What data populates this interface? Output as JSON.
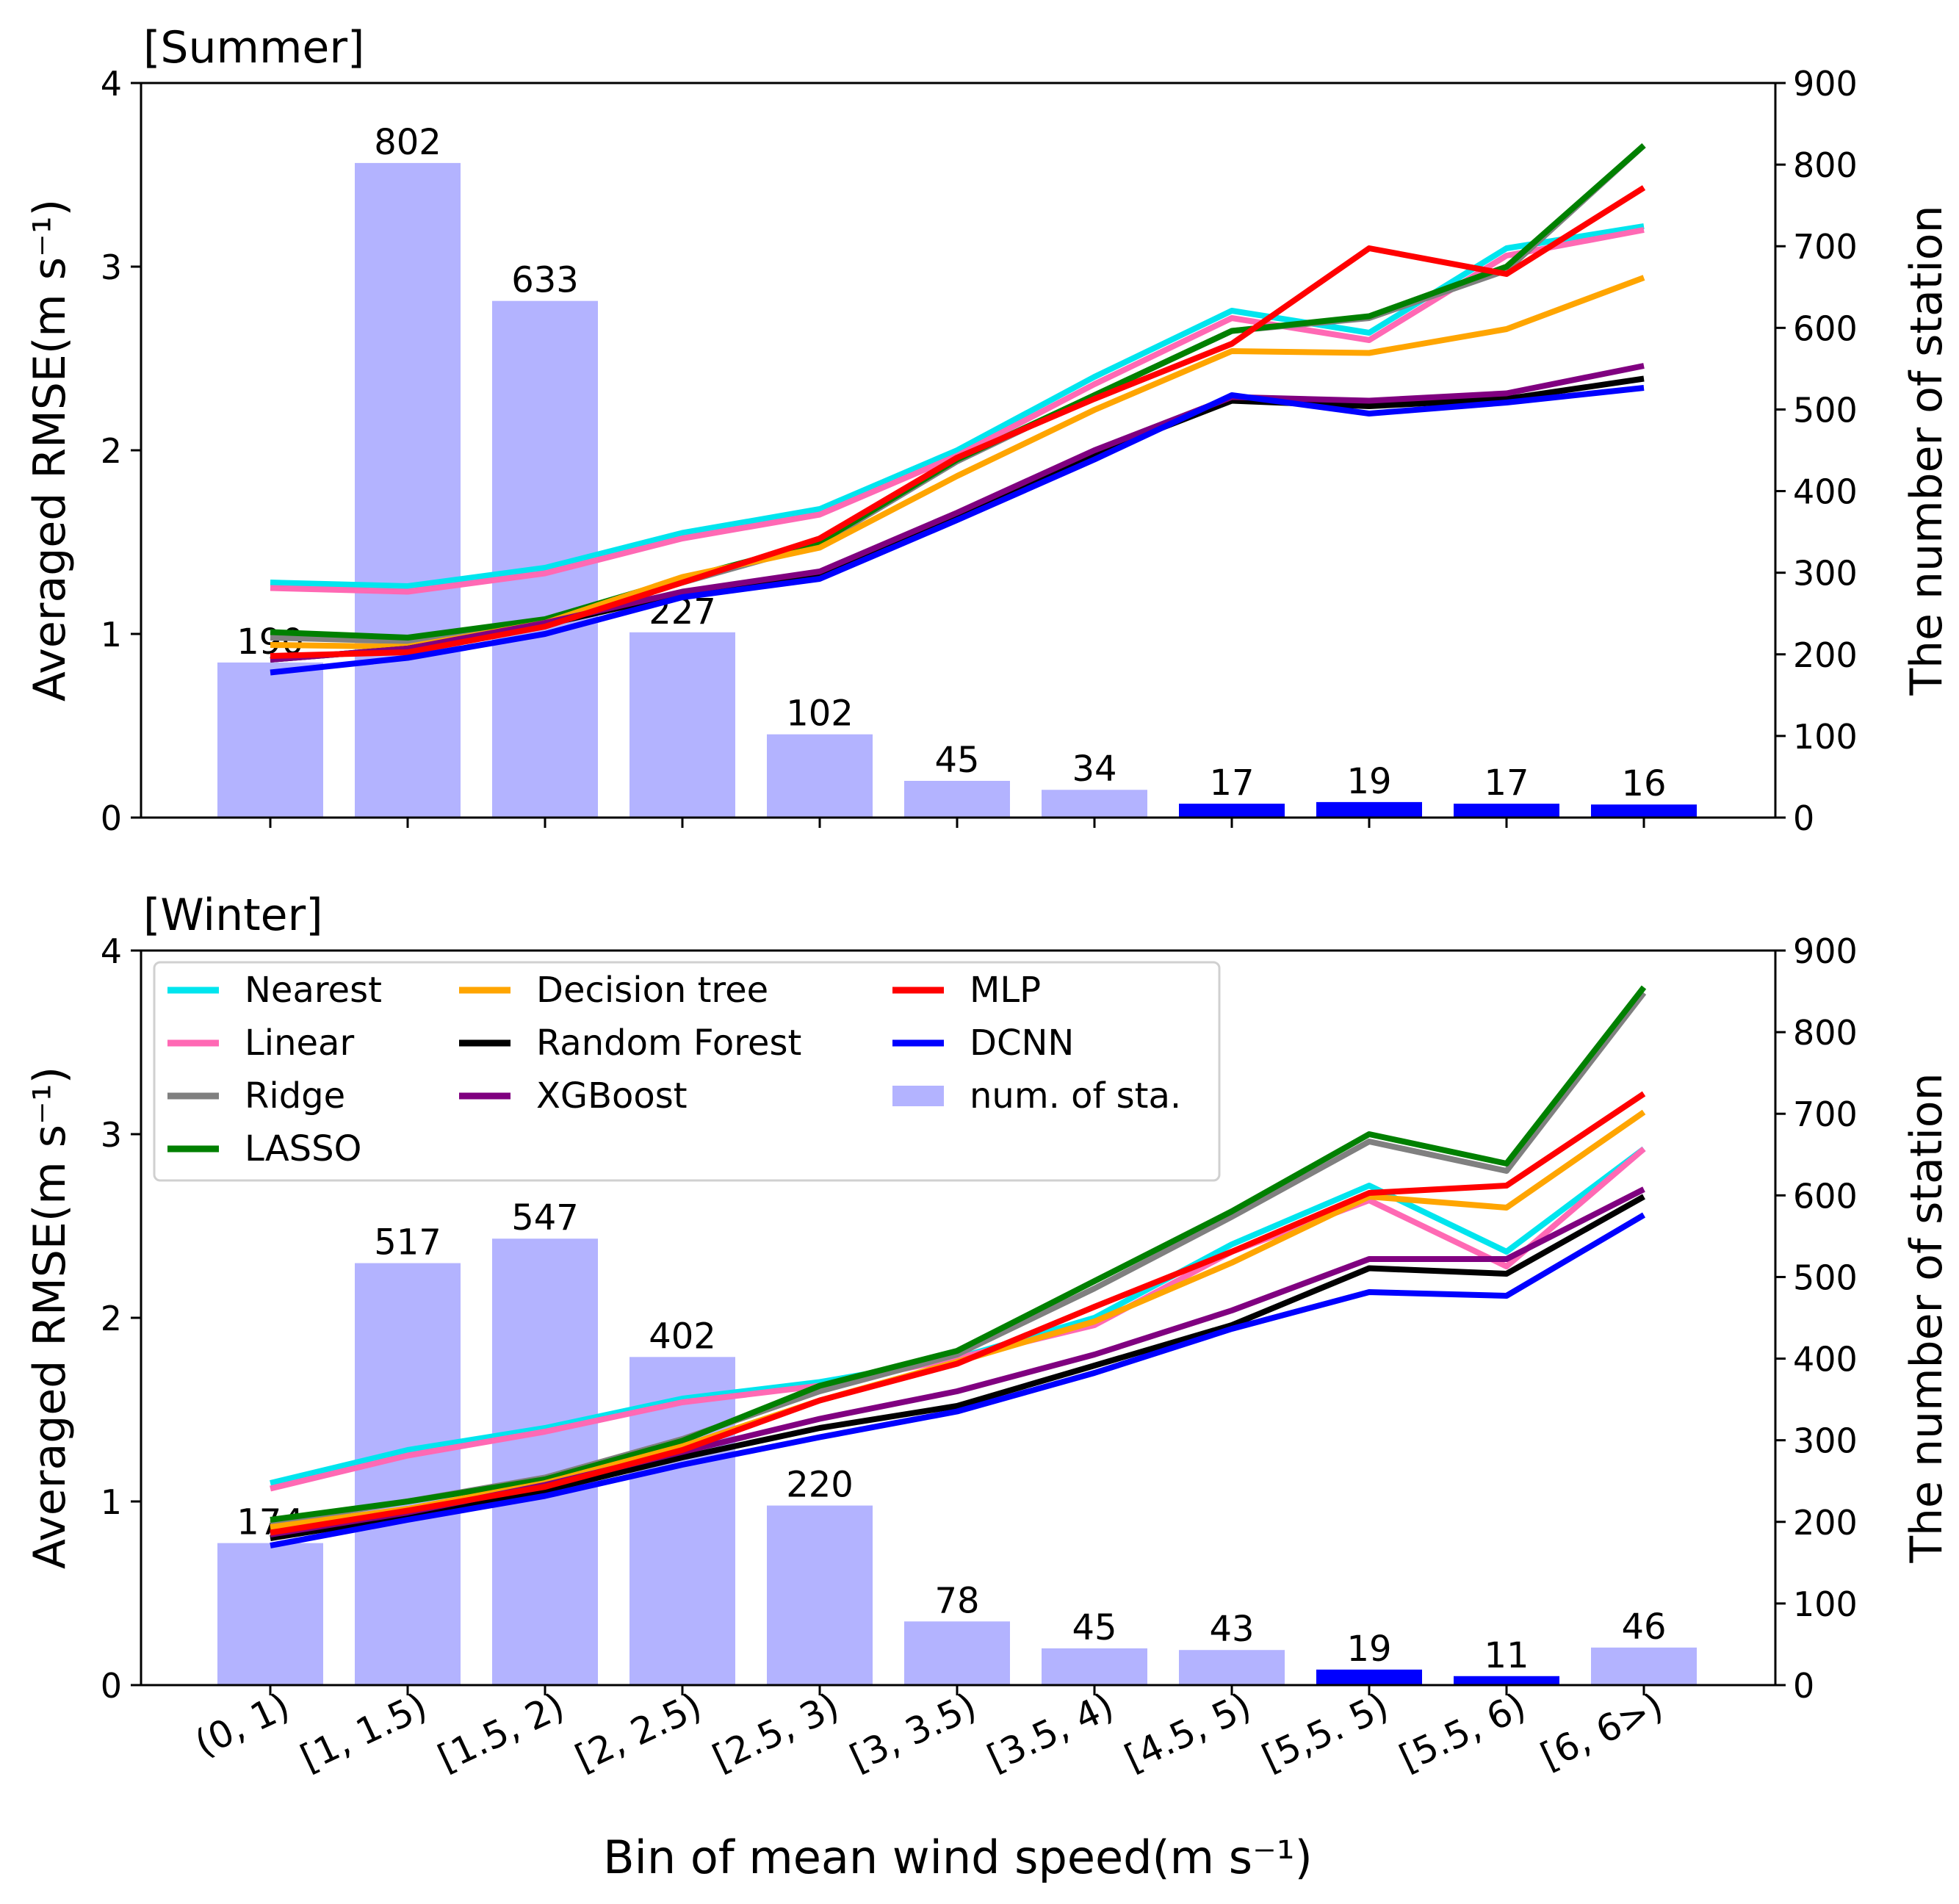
{
  "chart_data": [
    {
      "type": "line+bar",
      "title": "[Summer]",
      "xlabel": "Bin of mean wind speed(m s⁻¹)",
      "ylabel": "Averaged RMSE(m s⁻¹)",
      "y2label": "The number of station",
      "ylim": [
        0,
        4
      ],
      "y2lim": [
        0,
        900
      ],
      "yticks": [
        "0",
        "1",
        "2",
        "3",
        "4"
      ],
      "y2ticks": [
        "0",
        "100",
        "200",
        "300",
        "400",
        "500",
        "600",
        "700",
        "800",
        "900"
      ],
      "categories": [
        "(0, 1)",
        "[1, 1.5)",
        "[1.5, 2)",
        "[2, 2.5)",
        "[2.5, 3)",
        "[3, 3.5)",
        "[3.5, 4)",
        "[4.5, 5)",
        "[5,5. 5)",
        "[5.5, 6)",
        "[6, 6>)"
      ],
      "bars": {
        "name": "num. of sta.",
        "values": [
          190,
          802,
          633,
          227,
          102,
          45,
          34,
          17,
          19,
          17,
          16
        ],
        "labels": [
          "190",
          "802",
          "633",
          "227",
          "102",
          "45",
          "34",
          "17",
          "19",
          "17",
          "16"
        ]
      },
      "series": [
        {
          "name": "Nearest",
          "color": "#00e5ee",
          "values": [
            1.28,
            1.26,
            1.36,
            1.55,
            1.68,
            2.0,
            2.4,
            2.76,
            2.64,
            3.1,
            3.22
          ]
        },
        {
          "name": "Linear",
          "color": "#ff69b4",
          "values": [
            1.25,
            1.23,
            1.33,
            1.52,
            1.65,
            1.97,
            2.36,
            2.72,
            2.6,
            3.06,
            3.2
          ]
        },
        {
          "name": "Ridge",
          "color": "#808080",
          "values": [
            0.98,
            0.96,
            1.06,
            1.28,
            1.49,
            1.94,
            2.3,
            2.65,
            2.72,
            2.98,
            3.66
          ]
        },
        {
          "name": "LASSO",
          "color": "#008000",
          "values": [
            1.01,
            0.98,
            1.08,
            1.3,
            1.5,
            1.95,
            2.3,
            2.65,
            2.73,
            3.0,
            3.66
          ]
        },
        {
          "name": "Decision tree",
          "color": "#ffa500",
          "values": [
            0.94,
            0.93,
            1.06,
            1.31,
            1.47,
            1.86,
            2.22,
            2.54,
            2.53,
            2.66,
            2.94
          ]
        },
        {
          "name": "Random Forest",
          "color": "#000000",
          "values": [
            0.86,
            0.92,
            1.05,
            1.22,
            1.33,
            1.65,
            1.98,
            2.27,
            2.24,
            2.28,
            2.39
          ]
        },
        {
          "name": "XGBoost",
          "color": "#800080",
          "values": [
            0.86,
            0.92,
            1.06,
            1.23,
            1.34,
            1.66,
            2.0,
            2.29,
            2.27,
            2.31,
            2.46
          ]
        },
        {
          "name": "MLP",
          "color": "#ff0000",
          "values": [
            0.88,
            0.9,
            1.04,
            1.28,
            1.52,
            1.96,
            2.28,
            2.58,
            3.1,
            2.96,
            3.43
          ]
        },
        {
          "name": "DCNN",
          "color": "#0000ff",
          "values": [
            0.79,
            0.87,
            1.0,
            1.2,
            1.3,
            1.62,
            1.95,
            2.3,
            2.2,
            2.26,
            2.34
          ]
        }
      ]
    },
    {
      "type": "line+bar",
      "title": "[Winter]",
      "xlabel": "Bin of mean wind speed(m s⁻¹)",
      "ylabel": "Averaged RMSE(m s⁻¹)",
      "y2label": "The number of station",
      "ylim": [
        0,
        4
      ],
      "y2lim": [
        0,
        900
      ],
      "yticks": [
        "0",
        "1",
        "2",
        "3",
        "4"
      ],
      "y2ticks": [
        "0",
        "100",
        "200",
        "300",
        "400",
        "500",
        "600",
        "700",
        "800",
        "900"
      ],
      "categories": [
        "(0, 1)",
        "[1, 1.5)",
        "[1.5, 2)",
        "[2, 2.5)",
        "[2.5, 3)",
        "[3, 3.5)",
        "[3.5, 4)",
        "[4.5, 5)",
        "[5,5. 5)",
        "[5.5, 6)",
        "[6, 6>)"
      ],
      "bars": {
        "name": "num. of sta.",
        "values": [
          174,
          517,
          547,
          402,
          220,
          78,
          45,
          43,
          19,
          11,
          46
        ],
        "labels": [
          "174",
          "517",
          "547",
          "402",
          "220",
          "78",
          "45",
          "43",
          "19",
          "11",
          "46"
        ]
      },
      "series": [
        {
          "name": "Nearest",
          "color": "#00e5ee",
          "values": [
            1.1,
            1.28,
            1.4,
            1.56,
            1.65,
            1.78,
            2.0,
            2.4,
            2.72,
            2.36,
            2.92
          ]
        },
        {
          "name": "Linear",
          "color": "#ff69b4",
          "values": [
            1.07,
            1.25,
            1.38,
            1.54,
            1.63,
            1.78,
            1.96,
            2.36,
            2.64,
            2.28,
            2.92
          ]
        },
        {
          "name": "Ridge",
          "color": "#808080",
          "values": [
            0.88,
            1.0,
            1.13,
            1.34,
            1.6,
            1.8,
            2.16,
            2.55,
            2.96,
            2.8,
            3.77
          ]
        },
        {
          "name": "LASSO",
          "color": "#008000",
          "values": [
            0.9,
            1.0,
            1.12,
            1.33,
            1.63,
            1.82,
            2.2,
            2.58,
            3.0,
            2.84,
            3.8
          ]
        },
        {
          "name": "Decision tree",
          "color": "#ffa500",
          "values": [
            0.86,
            0.96,
            1.1,
            1.3,
            1.55,
            1.76,
            1.98,
            2.3,
            2.66,
            2.6,
            3.12
          ]
        },
        {
          "name": "Random Forest",
          "color": "#000000",
          "values": [
            0.8,
            0.92,
            1.06,
            1.24,
            1.4,
            1.52,
            1.74,
            1.96,
            2.27,
            2.24,
            2.66
          ]
        },
        {
          "name": "XGBoost",
          "color": "#800080",
          "values": [
            0.82,
            0.94,
            1.09,
            1.27,
            1.45,
            1.6,
            1.8,
            2.04,
            2.32,
            2.32,
            2.7
          ]
        },
        {
          "name": "MLP",
          "color": "#ff0000",
          "values": [
            0.83,
            0.95,
            1.08,
            1.28,
            1.55,
            1.75,
            2.06,
            2.36,
            2.68,
            2.72,
            3.22
          ]
        },
        {
          "name": "DCNN",
          "color": "#0000ff",
          "values": [
            0.76,
            0.9,
            1.03,
            1.2,
            1.35,
            1.49,
            1.7,
            1.94,
            2.14,
            2.12,
            2.56
          ]
        }
      ]
    }
  ],
  "legend": {
    "location": "upper-left of winter panel",
    "columns": [
      [
        "Nearest",
        "Linear",
        "Ridge",
        "LASSO"
      ],
      [
        "Decision tree",
        "Random Forest",
        "XGBoost"
      ],
      [
        "MLP",
        "DCNN",
        "num. of sta."
      ]
    ]
  },
  "colors": {
    "bar_fill": "#b3b3ff",
    "bar_highlight": "#0000ff",
    "legend_border": "#d0d0d0"
  }
}
